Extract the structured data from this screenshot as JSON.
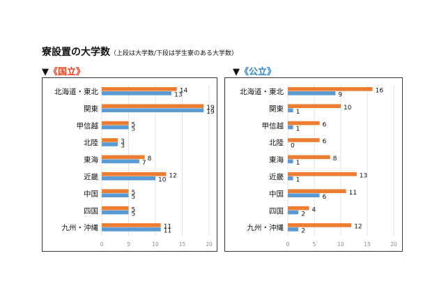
{
  "header": {
    "title": "寮設置の大学数",
    "subtitle": "（上段は大学数/下段は学生寮のある大学数）"
  },
  "colors": {
    "orange": "#ed7d31",
    "blue": "#5b9bd5",
    "national_heading": "#e8401c",
    "public_heading": "#2b86c9"
  },
  "chart_data": [
    {
      "type": "bar",
      "orientation": "horizontal",
      "marker": "▼",
      "title": "《国立》",
      "categories": [
        "北海道・東北",
        "関東",
        "甲信越",
        "北陸",
        "東海",
        "近畿",
        "中国",
        "四国",
        "九州・沖縄"
      ],
      "series": [
        {
          "name": "大学数",
          "color": "#ed7d31",
          "values": [
            14,
            19,
            5,
            3,
            8,
            12,
            5,
            5,
            11
          ]
        },
        {
          "name": "学生寮のある大学数",
          "color": "#5b9bd5",
          "values": [
            13,
            19,
            5,
            3,
            7,
            10,
            5,
            5,
            11
          ]
        }
      ],
      "xlim": [
        0,
        20
      ],
      "xticks": [
        "0",
        "5",
        "10",
        "15",
        "20"
      ],
      "grid": true
    },
    {
      "type": "bar",
      "orientation": "horizontal",
      "marker": "▼",
      "title": "《公立》",
      "categories": [
        "北海道・東北",
        "関東",
        "甲信越",
        "北陸",
        "東海",
        "近畿",
        "中国",
        "四国",
        "九州・沖縄"
      ],
      "series": [
        {
          "name": "大学数",
          "color": "#ed7d31",
          "values": [
            16,
            10,
            6,
            6,
            8,
            13,
            11,
            4,
            12
          ]
        },
        {
          "name": "学生寮のある大学数",
          "color": "#5b9bd5",
          "values": [
            9,
            1,
            1,
            0,
            1,
            1,
            6,
            2,
            2
          ]
        }
      ],
      "xlim": [
        0,
        20
      ],
      "xticks": [
        "0",
        "5",
        "10",
        "15",
        "20"
      ],
      "grid": true
    }
  ]
}
